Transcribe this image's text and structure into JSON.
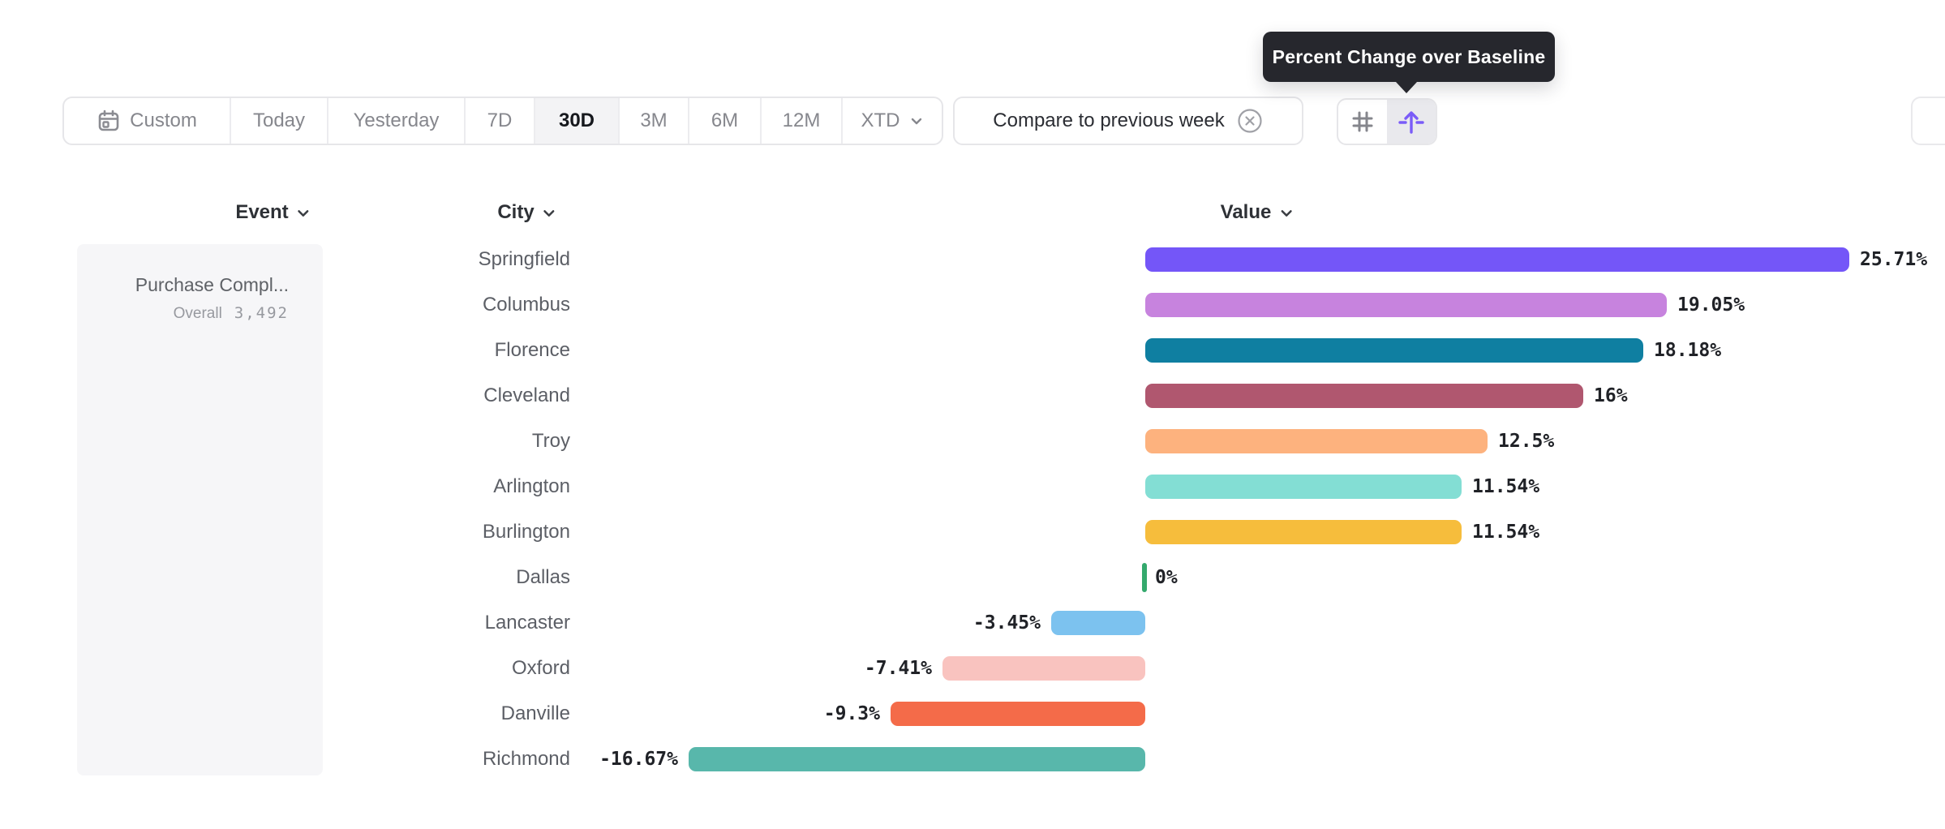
{
  "tooltip": {
    "text": "Percent Change over Baseline"
  },
  "toolbar": {
    "date_ranges": [
      {
        "label": "Custom",
        "selected": false,
        "icon": "calendar"
      },
      {
        "label": "Today",
        "selected": false
      },
      {
        "label": "Yesterday",
        "selected": false
      },
      {
        "label": "7D",
        "selected": false
      },
      {
        "label": "30D",
        "selected": true
      },
      {
        "label": "3M",
        "selected": false
      },
      {
        "label": "6M",
        "selected": false
      },
      {
        "label": "12M",
        "selected": false
      },
      {
        "label": "XTD",
        "selected": false,
        "has_dropdown": true
      }
    ],
    "compare_filter": {
      "label": "Compare to previous week"
    },
    "view_modes": [
      {
        "name": "numbers",
        "icon": "hash-icon",
        "selected": false
      },
      {
        "name": "percent-change-over-baseline",
        "icon": "baseline-arrow-icon",
        "selected": true
      }
    ]
  },
  "table": {
    "columns": [
      {
        "label": "Event"
      },
      {
        "label": "City"
      },
      {
        "label": "Value"
      }
    ],
    "event_cell": {
      "name": "Purchase Compl...",
      "overall_label": "Overall",
      "overall_value": "3,492"
    }
  },
  "chart_data": {
    "type": "bar",
    "orientation": "horizontal",
    "value_format": "percent change over baseline",
    "categories": [
      "Springfield",
      "Columbus",
      "Florence",
      "Cleveland",
      "Troy",
      "Arlington",
      "Burlington",
      "Dallas",
      "Lancaster",
      "Oxford",
      "Danville",
      "Richmond"
    ],
    "values": [
      25.71,
      19.05,
      18.18,
      16,
      12.5,
      11.54,
      11.54,
      0,
      -3.45,
      -7.41,
      -9.3,
      -16.67
    ],
    "labels": [
      "25.71%",
      "19.05%",
      "18.18%",
      "16%",
      "12.5%",
      "11.54%",
      "11.54%",
      "0%",
      "-3.45%",
      "-7.41%",
      "-9.3%",
      "-16.67%"
    ],
    "bar_colors": [
      "#7456f8",
      "#c783de",
      "#0f7fa1",
      "#b0576f",
      "#fdb27e",
      "#83ded4",
      "#f6bd3c",
      "#34a96d",
      "#7cc2ef",
      "#f9c3bf",
      "#f46b49",
      "#58b7ab"
    ],
    "zero_marker_color": "#34a96d",
    "xlim": [
      -16.67,
      25.71
    ],
    "grid": false,
    "legend": false
  },
  "colors": {
    "accent_purple": "#7a5cf8",
    "tooltip_bg": "#26272d",
    "selected_segment_bg": "#f3f3f5",
    "border": "#e6e6e9"
  }
}
